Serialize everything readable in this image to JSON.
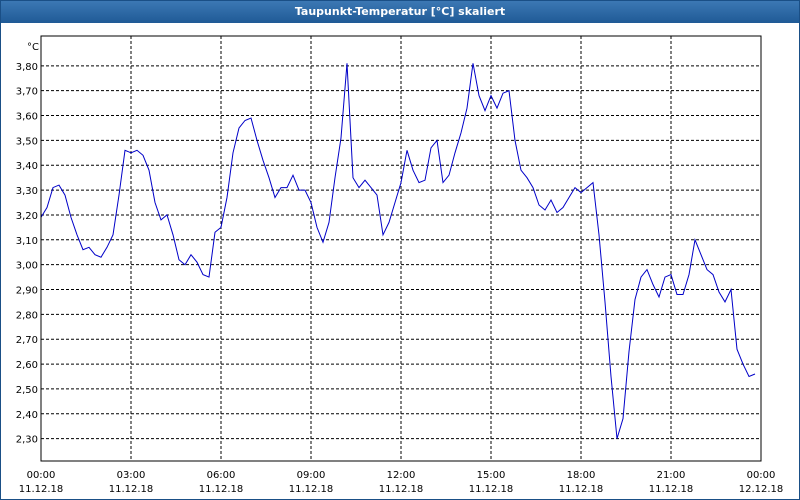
{
  "window": {
    "title": "Taupunkt-Temperatur [°C] skaliert"
  },
  "colors": {
    "line": "#0000c8",
    "grid": "#000000",
    "titlebar": "#2b68a6"
  },
  "chart_data": {
    "type": "line",
    "title": "Taupunkt-Temperatur [°C] skaliert",
    "ylabel": "°C",
    "xlabel": "",
    "ylim": [
      2.21,
      3.92
    ],
    "xlim": [
      0,
      24
    ],
    "grid": true,
    "y_ticks": [
      "3,80",
      "3,70",
      "3,60",
      "3,50",
      "3,40",
      "3,30",
      "3,20",
      "3,10",
      "3,00",
      "2,90",
      "2,80",
      "2,70",
      "2,60",
      "2,50",
      "2,40",
      "2,30"
    ],
    "y_tick_values": [
      3.8,
      3.7,
      3.6,
      3.5,
      3.4,
      3.3,
      3.2,
      3.1,
      3.0,
      2.9,
      2.8,
      2.7,
      2.6,
      2.5,
      2.4,
      2.3
    ],
    "x_ticks": [
      {
        "time": "00:00",
        "date": "11.12.18"
      },
      {
        "time": "03:00",
        "date": "11.12.18"
      },
      {
        "time": "06:00",
        "date": "11.12.18"
      },
      {
        "time": "09:00",
        "date": "11.12.18"
      },
      {
        "time": "12:00",
        "date": "11.12.18"
      },
      {
        "time": "15:00",
        "date": "11.12.18"
      },
      {
        "time": "18:00",
        "date": "11.12.18"
      },
      {
        "time": "21:00",
        "date": "11.12.18"
      },
      {
        "time": "00:00",
        "date": "12.12.18"
      }
    ],
    "x_tick_hours": [
      0,
      3,
      6,
      9,
      12,
      15,
      18,
      21,
      24
    ],
    "series": [
      {
        "x": [
          0,
          0.2,
          0.4,
          0.6,
          0.8,
          1.0,
          1.2,
          1.4,
          1.6,
          1.8,
          2.0,
          2.2,
          2.4,
          2.6,
          2.8,
          3.0,
          3.2,
          3.4,
          3.6,
          3.8,
          4.0,
          4.2,
          4.4,
          4.6,
          4.8,
          5.0,
          5.2,
          5.4,
          5.6,
          5.8,
          6.0,
          6.2,
          6.4,
          6.6,
          6.8,
          7.0,
          7.2,
          7.4,
          7.6,
          7.8,
          8.0,
          8.2,
          8.4,
          8.6,
          8.8,
          9.0,
          9.2,
          9.4,
          9.6,
          9.8,
          10.0,
          10.2,
          10.4,
          10.6,
          10.8,
          11.0,
          11.2,
          11.4,
          11.6,
          11.8,
          12.0,
          12.2,
          12.4,
          12.6,
          12.8,
          13.0,
          13.2,
          13.4,
          13.6,
          13.8,
          14.0,
          14.2,
          14.4,
          14.6,
          14.8,
          15.0,
          15.2,
          15.4,
          15.6,
          15.8,
          16.0,
          16.2,
          16.4,
          16.6,
          16.8,
          17.0,
          17.2,
          17.4,
          17.6,
          17.8,
          18.0,
          18.2,
          18.4,
          18.6,
          18.8,
          19.0,
          19.2,
          19.4,
          19.6,
          19.8,
          20.0,
          20.2,
          20.4,
          20.6,
          20.8,
          21.0,
          21.2,
          21.4,
          21.6,
          21.8,
          22.0,
          22.2,
          22.4,
          22.6,
          22.8,
          23.0,
          23.2,
          23.4,
          23.6,
          23.8
        ],
        "y": [
          3.19,
          3.23,
          3.31,
          3.32,
          3.28,
          3.19,
          3.12,
          3.06,
          3.07,
          3.04,
          3.03,
          3.07,
          3.12,
          3.28,
          3.46,
          3.45,
          3.46,
          3.44,
          3.38,
          3.25,
          3.18,
          3.2,
          3.12,
          3.02,
          3.0,
          3.04,
          3.01,
          2.96,
          2.95,
          3.13,
          3.15,
          3.27,
          3.45,
          3.55,
          3.58,
          3.59,
          3.5,
          3.42,
          3.35,
          3.27,
          3.31,
          3.31,
          3.36,
          3.3,
          3.3,
          3.25,
          3.15,
          3.09,
          3.17,
          3.35,
          3.51,
          3.81,
          3.35,
          3.31,
          3.34,
          3.31,
          3.28,
          3.12,
          3.17,
          3.25,
          3.33,
          3.46,
          3.38,
          3.33,
          3.34,
          3.47,
          3.5,
          3.33,
          3.36,
          3.45,
          3.53,
          3.63,
          3.81,
          3.68,
          3.62,
          3.68,
          3.63,
          3.69,
          3.7,
          3.5,
          3.38,
          3.35,
          3.31,
          3.24,
          3.22,
          3.26,
          3.21,
          3.23,
          3.27,
          3.31,
          3.29,
          3.31,
          3.33,
          3.12,
          2.85,
          2.55,
          2.3,
          2.38,
          2.65,
          2.86,
          2.95,
          2.98,
          2.92,
          2.87,
          2.95,
          2.96,
          2.88,
          2.88,
          2.96,
          3.1,
          3.04,
          2.98,
          2.96,
          2.89,
          2.85,
          2.9,
          2.66,
          2.6,
          2.55,
          2.56
        ]
      }
    ]
  }
}
